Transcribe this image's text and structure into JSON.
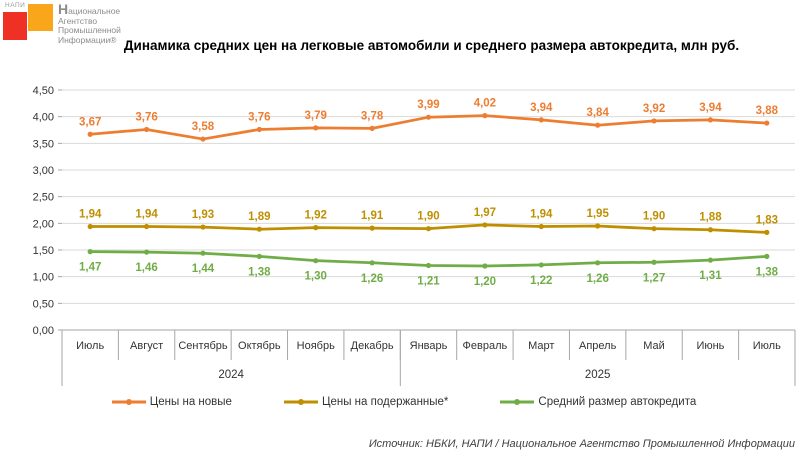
{
  "logo": {
    "napi_label": "НАПИ",
    "org_name_lines": [
      "Национальное",
      "Агентство",
      "Промышленной",
      "Информации®"
    ],
    "red_color": "#EE3124",
    "orange_color": "#FAA61A"
  },
  "title": "Динамика средних цен на легковые автомобили и среднего размера автокредита, млн руб.",
  "source": "Источник: НБКИ, НАПИ / Национальное Агентство Промышленной Информации",
  "chart_data": {
    "type": "line",
    "categories": [
      "Июль",
      "Август",
      "Сентябрь",
      "Октябрь",
      "Ноябрь",
      "Декабрь",
      "Январь",
      "Февраль",
      "Март",
      "Апрель",
      "Май",
      "Июнь",
      "Июль"
    ],
    "year_groups": [
      {
        "label": "2024",
        "span": 6
      },
      {
        "label": "2025",
        "span": 7
      }
    ],
    "series": [
      {
        "name": "Цены на новые",
        "color": "#ED7D31",
        "label_position": "above",
        "values": [
          3.67,
          3.76,
          3.58,
          3.76,
          3.79,
          3.78,
          3.99,
          4.02,
          3.94,
          3.84,
          3.92,
          3.94,
          3.88
        ]
      },
      {
        "name": "Цены на подержанные*",
        "color": "#BF8F00",
        "label_position": "above",
        "values": [
          1.94,
          1.94,
          1.93,
          1.89,
          1.92,
          1.91,
          1.9,
          1.97,
          1.94,
          1.95,
          1.9,
          1.88,
          1.83
        ]
      },
      {
        "name": "Средний размер автокредита",
        "color": "#70AD47",
        "label_position": "below",
        "values": [
          1.47,
          1.46,
          1.44,
          1.38,
          1.3,
          1.26,
          1.21,
          1.2,
          1.22,
          1.26,
          1.27,
          1.31,
          1.38
        ]
      }
    ],
    "ylim": [
      0,
      4.5
    ],
    "ytick_step": 0.5,
    "decimal_separator": ",",
    "grid": true,
    "grid_color": "#D9D9D9",
    "axis_color": "#A6A6A6",
    "legend_position": "bottom"
  }
}
